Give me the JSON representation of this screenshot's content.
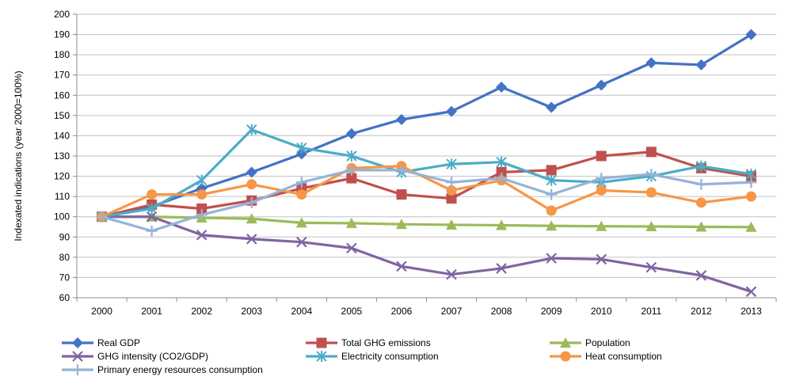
{
  "chart_data": {
    "type": "line",
    "title": "",
    "xlabel": "",
    "ylabel": "Indexated indications (year 2000=100%)",
    "ylim": [
      60,
      200
    ],
    "ytick_step": 10,
    "grid": "horizontal",
    "legend_position": "bottom",
    "categories": [
      "2000",
      "2001",
      "2002",
      "2003",
      "2004",
      "2005",
      "2006",
      "2007",
      "2008",
      "2009",
      "2010",
      "2011",
      "2012",
      "2013"
    ],
    "series": [
      {
        "name": "Real GDP",
        "color": "#4472c4",
        "marker": "diamond",
        "values": [
          100,
          105,
          114,
          122,
          131,
          141,
          148,
          152,
          164,
          154,
          165,
          176,
          175,
          190
        ]
      },
      {
        "name": "Total GHG emissions",
        "color": "#c0504d",
        "marker": "square",
        "values": [
          100,
          106,
          104,
          108,
          114,
          119,
          111,
          109,
          122,
          123,
          130,
          132,
          124,
          120
        ]
      },
      {
        "name": "Population",
        "color": "#9bbb59",
        "marker": "triangle",
        "values": [
          100,
          100,
          99.5,
          99,
          97,
          96.8,
          96.3,
          96,
          95.8,
          95.5,
          95.3,
          95.2,
          95,
          94.9
        ]
      },
      {
        "name": "GHG intensity (CO2/GDP)",
        "color": "#8064a2",
        "marker": "x",
        "values": [
          100,
          100,
          91,
          89,
          87.5,
          84.5,
          75.5,
          71.5,
          74.5,
          79.5,
          79,
          75,
          71,
          63
        ]
      },
      {
        "name": "Electricity consumption",
        "color": "#4bacc6",
        "marker": "star",
        "values": [
          100,
          104,
          118,
          143,
          134,
          130,
          122,
          126,
          127,
          118,
          117,
          120,
          125,
          121
        ]
      },
      {
        "name": "Heat consumption",
        "color": "#f79646",
        "marker": "circle",
        "values": [
          100,
          111,
          111,
          116,
          111,
          124,
          125,
          113,
          118,
          103,
          113,
          112,
          107,
          110
        ]
      },
      {
        "name": "Primary energy resources consumption",
        "color": "#95b3d7",
        "marker": "plus",
        "values": [
          100,
          93,
          101,
          107,
          117,
          123,
          123,
          117,
          119,
          111,
          119,
          121,
          116,
          117
        ]
      }
    ]
  }
}
